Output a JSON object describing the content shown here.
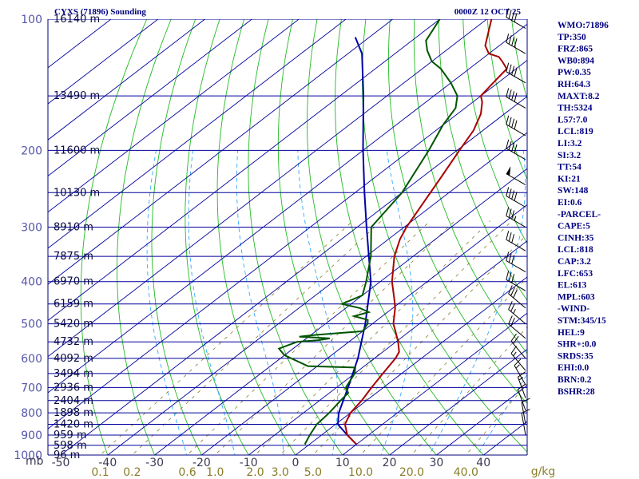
{
  "chart_data": {
    "type": "skew-t log-p sounding",
    "title_left": "CYXS (71896) Sounding",
    "title_right": "0000Z 12 OCT 25",
    "pressure_unit_label": "mb",
    "mixing_unit_label": "g/kg",
    "pressure_ticks": [
      "100",
      "200",
      "300",
      "400",
      "500",
      "600",
      "700",
      "800",
      "900",
      "1000"
    ],
    "pressure_values": [
      100,
      200,
      300,
      400,
      500,
      600,
      700,
      800,
      900,
      1000
    ],
    "temperature_ticks": [
      "-50",
      "-40",
      "-30",
      "-20",
      "-10",
      "0",
      "10",
      "20",
      "30",
      "40"
    ],
    "temperature_values": [
      -50,
      -40,
      -30,
      -20,
      -10,
      0,
      10,
      20,
      30,
      40
    ],
    "mixing_ratio_ticks": [
      "0.1",
      "0.2",
      "0.6",
      "1.0",
      "2.0",
      "3.0",
      "5.0",
      "10.0",
      "20.0",
      "40.0"
    ],
    "mixing_ratio_values": [
      0.1,
      0.2,
      0.6,
      1.0,
      2.0,
      3.0,
      5.0,
      10.0,
      20.0,
      40.0
    ],
    "heights": [
      {
        "p": 100,
        "label": "16140 m"
      },
      {
        "p": 150,
        "label": "13490 m"
      },
      {
        "p": 200,
        "label": "11600 m"
      },
      {
        "p": 250,
        "label": "10130 m"
      },
      {
        "p": 300,
        "label": "8910 m"
      },
      {
        "p": 350,
        "label": "7875 m"
      },
      {
        "p": 400,
        "label": "6970 m"
      },
      {
        "p": 450,
        "label": "6159 m"
      },
      {
        "p": 500,
        "label": "5420 m"
      },
      {
        "p": 550,
        "label": "4732 m"
      },
      {
        "p": 600,
        "label": "4092 m"
      },
      {
        "p": 650,
        "label": "3494 m"
      },
      {
        "p": 700,
        "label": "2936 m"
      },
      {
        "p": 750,
        "label": "2404 m"
      },
      {
        "p": 800,
        "label": "1898 m"
      },
      {
        "p": 850,
        "label": "1420 m"
      },
      {
        "p": 900,
        "label": "959 m"
      },
      {
        "p": 950,
        "label": "598 m"
      },
      {
        "p": 1000,
        "label": "96 m"
      }
    ],
    "temperature_profile": [
      {
        "p": 945,
        "t": 10
      },
      {
        "p": 900,
        "t": 5.5
      },
      {
        "p": 850,
        "t": 2
      },
      {
        "p": 800,
        "t": 0
      },
      {
        "p": 750,
        "t": -1
      },
      {
        "p": 700,
        "t": -2.5
      },
      {
        "p": 650,
        "t": -4
      },
      {
        "p": 600,
        "t": -5.5
      },
      {
        "p": 580,
        "t": -6.5
      },
      {
        "p": 550,
        "t": -9.5
      },
      {
        "p": 520,
        "t": -13
      },
      {
        "p": 500,
        "t": -15.5
      },
      {
        "p": 460,
        "t": -19.5
      },
      {
        "p": 440,
        "t": -22
      },
      {
        "p": 400,
        "t": -27.5
      },
      {
        "p": 350,
        "t": -34
      },
      {
        "p": 320,
        "t": -37.5
      },
      {
        "p": 300,
        "t": -39.5
      },
      {
        "p": 260,
        "t": -43
      },
      {
        "p": 230,
        "t": -46
      },
      {
        "p": 200,
        "t": -49.5
      },
      {
        "p": 180,
        "t": -52
      },
      {
        "p": 165,
        "t": -55
      },
      {
        "p": 155,
        "t": -58
      },
      {
        "p": 150,
        "t": -60
      },
      {
        "p": 140,
        "t": -61
      },
      {
        "p": 130,
        "t": -62
      },
      {
        "p": 125,
        "t": -65
      },
      {
        "p": 122,
        "t": -67
      },
      {
        "p": 120,
        "t": -70
      },
      {
        "p": 115,
        "t": -73
      },
      {
        "p": 100,
        "t": -79
      }
    ],
    "dewpoint_profile": [
      {
        "p": 945,
        "td": -1
      },
      {
        "p": 900,
        "td": -2.5
      },
      {
        "p": 850,
        "td": -4
      },
      {
        "p": 800,
        "td": -4.5
      },
      {
        "p": 750,
        "td": -5.5
      },
      {
        "p": 720,
        "td": -6
      },
      {
        "p": 700,
        "td": -8
      },
      {
        "p": 650,
        "td": -10
      },
      {
        "p": 630,
        "td": -11.5
      },
      {
        "p": 625,
        "td": -22
      },
      {
        "p": 590,
        "td": -30
      },
      {
        "p": 570,
        "td": -33
      },
      {
        "p": 550,
        "td": -31
      },
      {
        "p": 545,
        "td": -27
      },
      {
        "p": 540,
        "td": -25
      },
      {
        "p": 535,
        "td": -32
      },
      {
        "p": 530,
        "td": -29
      },
      {
        "p": 520,
        "td": -20
      },
      {
        "p": 500,
        "td": -21
      },
      {
        "p": 490,
        "td": -22
      },
      {
        "p": 480,
        "td": -26
      },
      {
        "p": 470,
        "td": -24
      },
      {
        "p": 460,
        "td": -27
      },
      {
        "p": 450,
        "td": -32
      },
      {
        "p": 430,
        "td": -30
      },
      {
        "p": 400,
        "td": -33
      },
      {
        "p": 350,
        "td": -39
      },
      {
        "p": 300,
        "td": -47
      },
      {
        "p": 250,
        "td": -50
      },
      {
        "p": 200,
        "td": -56
      },
      {
        "p": 175,
        "td": -60
      },
      {
        "p": 160,
        "td": -62
      },
      {
        "p": 150,
        "td": -65
      },
      {
        "p": 140,
        "td": -70
      },
      {
        "p": 130,
        "td": -76
      },
      {
        "p": 125,
        "td": -80
      },
      {
        "p": 118,
        "td": -84
      },
      {
        "p": 112,
        "td": -87
      },
      {
        "p": 100,
        "td": -90
      }
    ],
    "parcel_profile": [
      {
        "p": 945,
        "t": 10
      },
      {
        "p": 900,
        "t": 5.5
      },
      {
        "p": 850,
        "t": 0.5
      },
      {
        "p": 800,
        "t": -2.5
      },
      {
        "p": 700,
        "t": -7.5
      },
      {
        "p": 600,
        "t": -13.5
      },
      {
        "p": 500,
        "t": -21.5
      },
      {
        "p": 400,
        "t": -32
      },
      {
        "p": 300,
        "t": -48
      },
      {
        "p": 250,
        "t": -58
      },
      {
        "p": 200,
        "t": -70
      },
      {
        "p": 150,
        "t": -85
      },
      {
        "p": 120,
        "t": -97
      },
      {
        "p": 110,
        "t": -103
      }
    ],
    "wind_barbs": [
      {
        "p": 105,
        "dir": 300,
        "spd": 40
      },
      {
        "p": 120,
        "dir": 300,
        "spd": 40
      },
      {
        "p": 140,
        "dir": 300,
        "spd": 40
      },
      {
        "p": 160,
        "dir": 300,
        "spd": 40
      },
      {
        "p": 185,
        "dir": 300,
        "spd": 40
      },
      {
        "p": 210,
        "dir": 300,
        "spd": 40
      },
      {
        "p": 240,
        "dir": 300,
        "spd": 50
      },
      {
        "p": 270,
        "dir": 300,
        "spd": 40
      },
      {
        "p": 300,
        "dir": 300,
        "spd": 35
      },
      {
        "p": 340,
        "dir": 300,
        "spd": 30
      },
      {
        "p": 380,
        "dir": 300,
        "spd": 30
      },
      {
        "p": 420,
        "dir": 300,
        "spd": 30
      },
      {
        "p": 460,
        "dir": 310,
        "spd": 30
      },
      {
        "p": 500,
        "dir": 310,
        "spd": 25
      },
      {
        "p": 540,
        "dir": 310,
        "spd": 20
      },
      {
        "p": 600,
        "dir": 320,
        "spd": 20
      },
      {
        "p": 640,
        "dir": 320,
        "spd": 15
      },
      {
        "p": 690,
        "dir": 330,
        "spd": 15
      },
      {
        "p": 740,
        "dir": 340,
        "spd": 15
      },
      {
        "p": 790,
        "dir": 340,
        "spd": 10
      },
      {
        "p": 850,
        "dir": 350,
        "spd": 10
      },
      {
        "p": 900,
        "dir": 350,
        "spd": 10
      }
    ],
    "indices": [
      "WMO:71896",
      "TP:350",
      "FRZ:865",
      "WB0:894",
      "PW:0.35",
      "RH:64.3",
      "MAXT:8.2",
      "TH:5324",
      "L57:7.0",
      "LCL:819",
      "LI:3.2",
      "SI:3.2",
      "TT:54",
      "KI:21",
      "SW:148",
      "EI:0.6",
      "-PARCEL-",
      "CAPE:5",
      "CINH:35",
      "LCL:818",
      "CAP:3.2",
      "LFC:653",
      "EL:613",
      "MPL:603",
      "-WIND-",
      "STM:345/15",
      "HEL:9",
      "SHR+:0.0",
      "SRDS:35",
      "EHI:0.0",
      "BRN:0.2",
      "BSHR:28"
    ],
    "colors": {
      "isobar": "#00009c",
      "isotherm": "#00009c",
      "dry_adiabat": "#22bb22",
      "moist_adiabat": "#33aaff",
      "mixing_ratio": "#8a7d2a",
      "temperature": "#aa0000",
      "dewpoint": "#005500",
      "parcel": "#0000aa",
      "text": "#000080"
    }
  }
}
